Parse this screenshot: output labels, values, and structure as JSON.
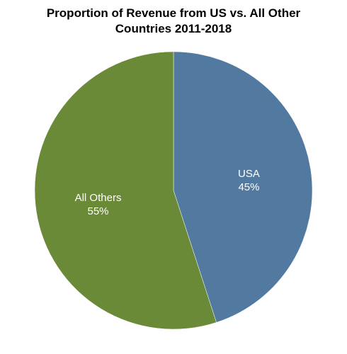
{
  "chart_data": {
    "type": "pie",
    "title_lines": [
      "Proportion of Revenue from US vs. All Other",
      "Countries 2011-2018"
    ],
    "start_angle_deg": 0,
    "direction": "clockwise",
    "slices": [
      {
        "name": "USA",
        "value": 45,
        "label": "45%",
        "color": "#527aa1"
      },
      {
        "name": "All Others",
        "value": 55,
        "label": "55%",
        "color": "#6a8a37"
      }
    ]
  }
}
